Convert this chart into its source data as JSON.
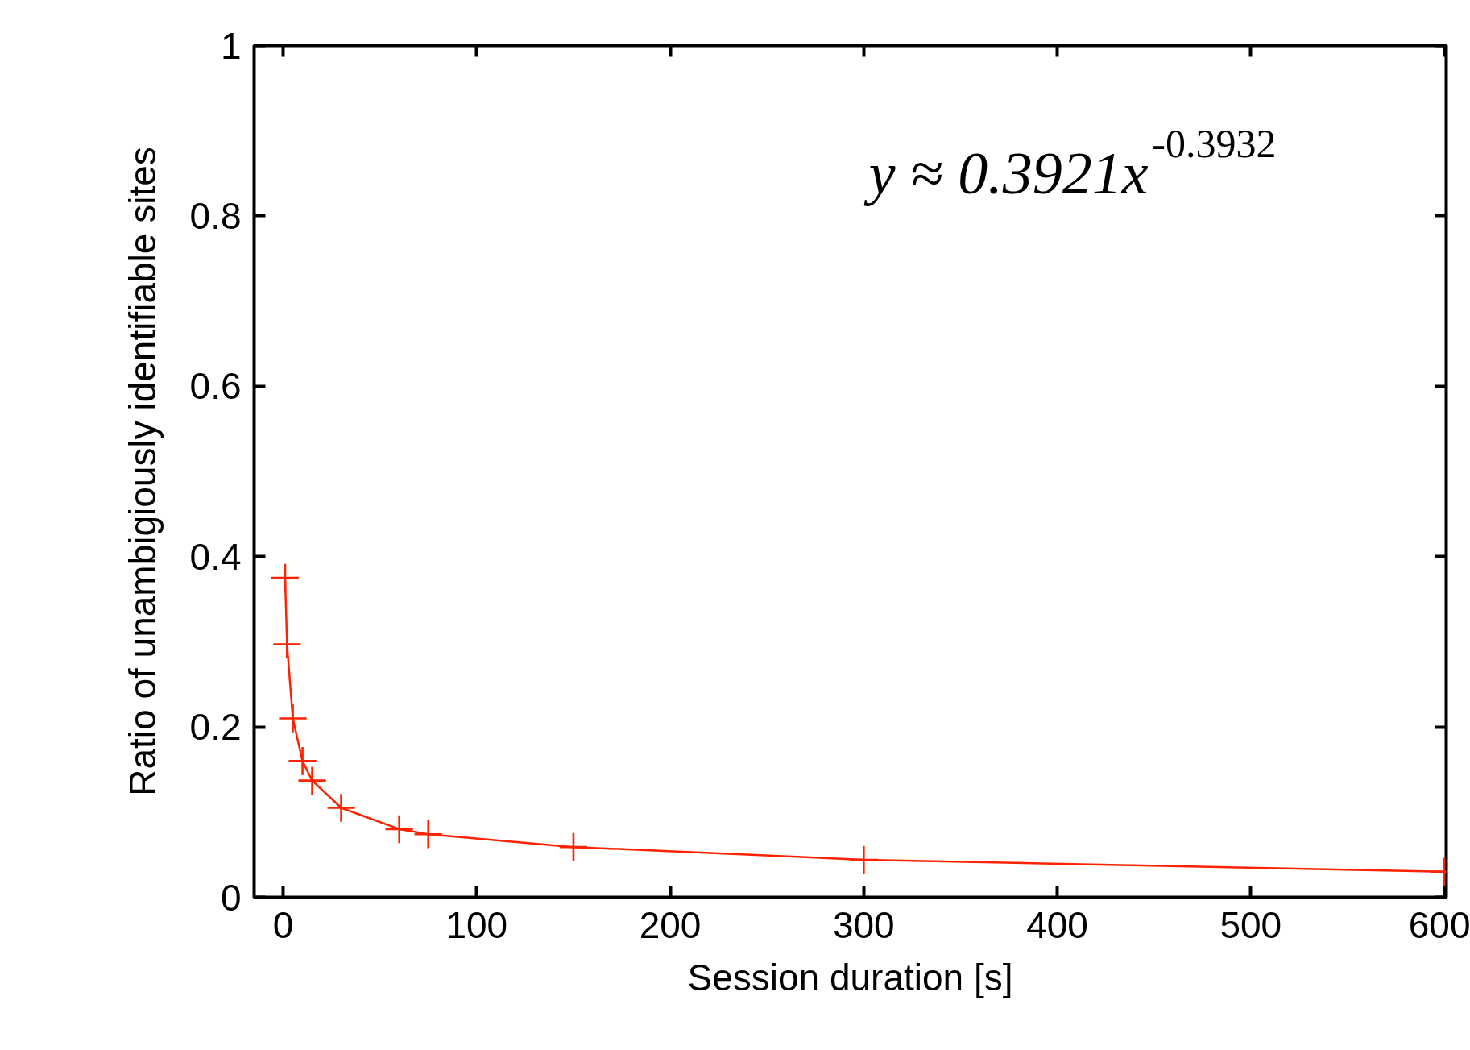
{
  "chart_data": {
    "type": "line",
    "xlabel": "Session duration [s]",
    "ylabel": "Ratio of unambigiously identifiable sites",
    "annotations": [
      "y ≈ 0.3921x$^{-0.3932}$"
    ],
    "x": [
      1,
      2,
      5,
      10,
      15,
      30,
      60,
      75,
      150,
      300,
      600
    ],
    "series": [
      {
        "color": "#ff2200",
        "values": [
          0.375,
          0.297,
          0.21,
          0.16,
          0.137,
          0.105,
          0.08,
          0.074,
          0.059,
          0.044,
          0.03
        ]
      }
    ],
    "xlim": [
      -15,
      601
    ],
    "ylim": [
      0,
      1
    ],
    "xticks": [
      0,
      100,
      200,
      300,
      400,
      500,
      600
    ],
    "yticks": [
      0,
      0.2,
      0.4,
      0.6,
      0.8,
      1
    ],
    "grid": false,
    "marker": "cross",
    "line_style": "solid"
  }
}
